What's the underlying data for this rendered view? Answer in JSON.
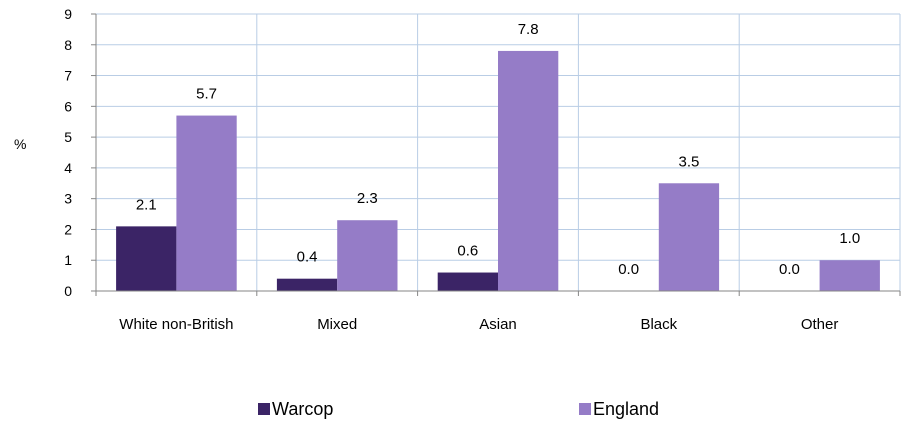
{
  "chart_data": {
    "type": "bar",
    "categories": [
      "White non-British",
      "Mixed",
      "Asian",
      "Black",
      "Other"
    ],
    "series": [
      {
        "name": "Warcop",
        "values": [
          2.1,
          0.4,
          0.6,
          0.0,
          0.0
        ],
        "labels": [
          "2.1",
          "0.4",
          "0.6",
          "0.0",
          "0.0"
        ],
        "color": "#3b2466"
      },
      {
        "name": "England",
        "values": [
          5.7,
          2.3,
          7.8,
          3.5,
          1.0
        ],
        "labels": [
          "5.7",
          "2.3",
          "7.8",
          "3.5",
          "1.0"
        ],
        "color": "#957cc7"
      }
    ],
    "ylabel": "%",
    "ylim": [
      0,
      9
    ],
    "yticks": [
      "0",
      "1",
      "2",
      "3",
      "4",
      "5",
      "6",
      "7",
      "8",
      "9"
    ],
    "grid": true,
    "gridColor": "#b9cde5",
    "legend_position": "bottom"
  }
}
